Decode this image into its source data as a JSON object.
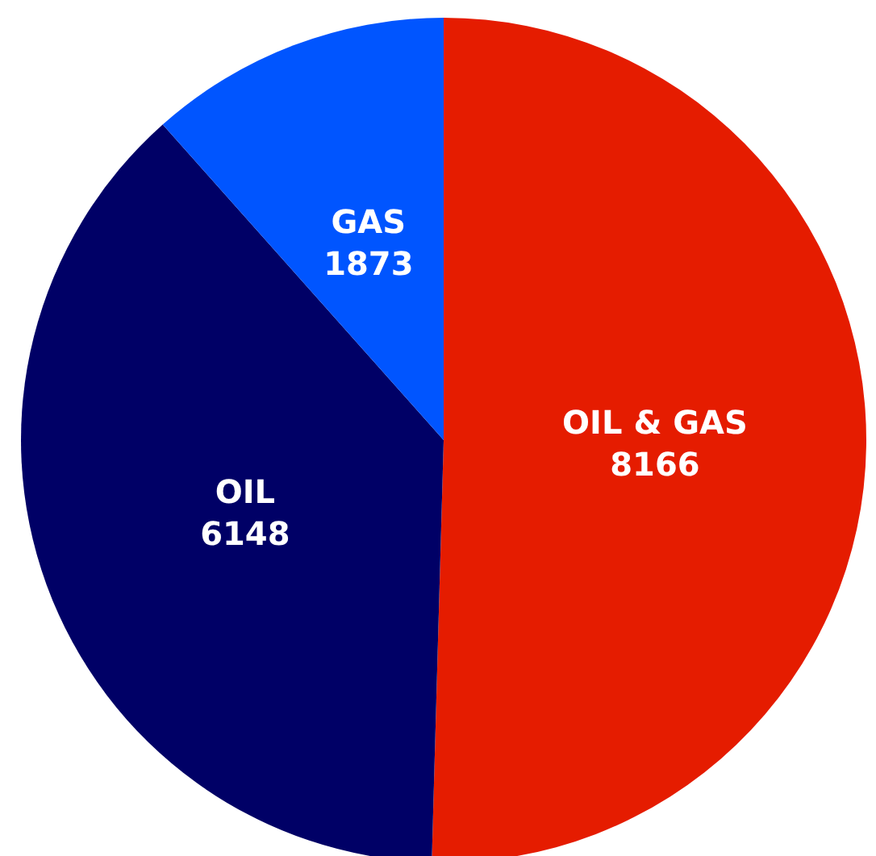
{
  "chart_data": {
    "type": "pie",
    "categories": [
      "OIL & GAS",
      "OIL",
      "GAS"
    ],
    "values": [
      8166,
      6148,
      1873
    ],
    "colors": [
      "#e51c00",
      "#000066",
      "#0055ff"
    ],
    "data_labels": true
  }
}
